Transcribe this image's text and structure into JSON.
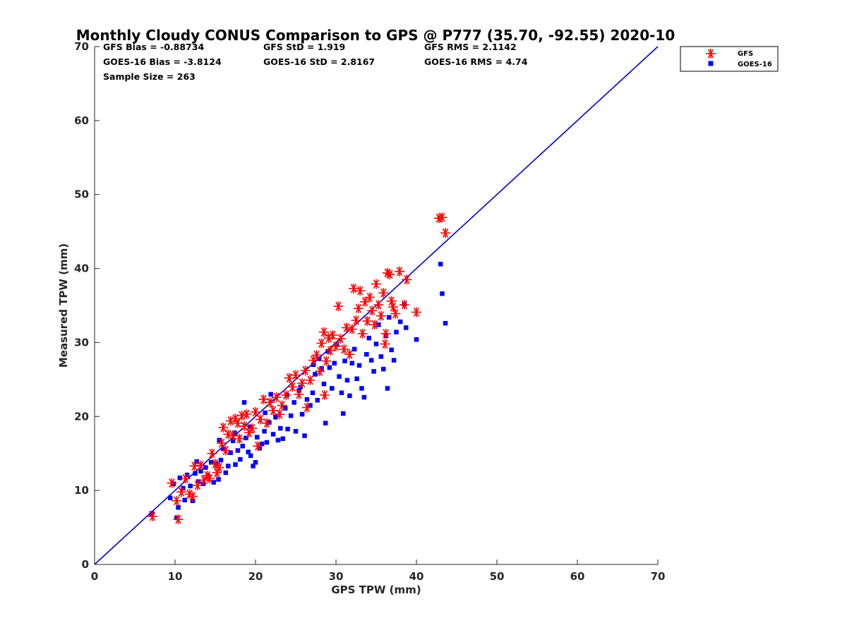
{
  "stats": {
    "gfs_bias": "GFS Bias = -0.88734",
    "gfs_std": "GFS StD = 1.919",
    "gfs_rms": "GFS RMS = 2.1142",
    "goes_bias": "GOES-16 Bias = -3.8124",
    "goes_std": "GOES-16 StD = 2.8167",
    "goes_rms": "GOES-16 RMS = 4.74",
    "sample_size": "Sample Size = 263"
  },
  "chart_data": {
    "type": "scatter",
    "title": "Monthly Cloudy CONUS Comparison to GPS @ P777 (35.70, -92.55) 2020-10",
    "xlabel": "GPS TPW (mm)",
    "ylabel": "Measured TPW (mm)",
    "xlim": [
      0,
      70
    ],
    "ylim": [
      0,
      70
    ],
    "xticks": [
      0,
      10,
      20,
      30,
      40,
      50,
      60,
      70
    ],
    "yticks": [
      0,
      10,
      20,
      30,
      40,
      50,
      60,
      70
    ],
    "grid": false,
    "legend_position": "top-right outside",
    "reference_line": {
      "x": [
        0,
        70
      ],
      "y": [
        0,
        70
      ],
      "color": "#0000cc"
    },
    "series": [
      {
        "name": "GFS",
        "marker": "asterisk",
        "color": "#ff0000",
        "points": [
          [
            7.2,
            6.5
          ],
          [
            9.6,
            11
          ],
          [
            10.2,
            8.6
          ],
          [
            10.4,
            6.1
          ],
          [
            10.8,
            9.8
          ],
          [
            11.3,
            11.6
          ],
          [
            11.8,
            9.5
          ],
          [
            12.2,
            9.2
          ],
          [
            12.4,
            13.3
          ],
          [
            12.8,
            10.7
          ],
          [
            13.2,
            13.4
          ],
          [
            13.6,
            11.4
          ],
          [
            14.0,
            12.0
          ],
          [
            14.3,
            11.6
          ],
          [
            14.6,
            15.0
          ],
          [
            15.0,
            13.6
          ],
          [
            15.2,
            12.4
          ],
          [
            15.5,
            13.1
          ],
          [
            15.8,
            16.4
          ],
          [
            16.0,
            18.5
          ],
          [
            16.3,
            15.4
          ],
          [
            16.6,
            17.6
          ],
          [
            16.9,
            19.4
          ],
          [
            17.2,
            17.4
          ],
          [
            17.5,
            19.7
          ],
          [
            17.8,
            19.1
          ],
          [
            18.0,
            17.0
          ],
          [
            18.3,
            20.1
          ],
          [
            18.6,
            18.7
          ],
          [
            18.9,
            20.3
          ],
          [
            19.2,
            17.8
          ],
          [
            19.6,
            18.4
          ],
          [
            20.0,
            20.6
          ],
          [
            20.3,
            16.0
          ],
          [
            20.6,
            19.6
          ],
          [
            21.0,
            22.3
          ],
          [
            21.4,
            19.1
          ],
          [
            21.8,
            21.9
          ],
          [
            22.2,
            20.8
          ],
          [
            22.6,
            22.6
          ],
          [
            23.0,
            20.3
          ],
          [
            23.3,
            21.5
          ],
          [
            23.8,
            22.9
          ],
          [
            24.2,
            25.2
          ],
          [
            24.6,
            24.0
          ],
          [
            25.0,
            25.6
          ],
          [
            25.4,
            23.0
          ],
          [
            25.8,
            24.5
          ],
          [
            26.2,
            26.2
          ],
          [
            26.4,
            21.2
          ],
          [
            26.8,
            24.9
          ],
          [
            27.2,
            27.6
          ],
          [
            27.6,
            28.3
          ],
          [
            28.0,
            26.1
          ],
          [
            28.2,
            29.9
          ],
          [
            28.5,
            31.4
          ],
          [
            28.6,
            22.9
          ],
          [
            28.8,
            27.5
          ],
          [
            29.1,
            30.6
          ],
          [
            29.3,
            28.9
          ],
          [
            29.6,
            31.0
          ],
          [
            30.0,
            29.5
          ],
          [
            30.3,
            34.9
          ],
          [
            30.6,
            30.5
          ],
          [
            31.0,
            29.1
          ],
          [
            31.3,
            32.0
          ],
          [
            31.7,
            28.4
          ],
          [
            32.0,
            31.8
          ],
          [
            32.2,
            37.3
          ],
          [
            32.5,
            33.0
          ],
          [
            32.8,
            34.6
          ],
          [
            33.0,
            37.0
          ],
          [
            33.3,
            31.2
          ],
          [
            33.6,
            35.5
          ],
          [
            33.9,
            32.9
          ],
          [
            34.2,
            36.1
          ],
          [
            34.5,
            34.3
          ],
          [
            34.8,
            32.4
          ],
          [
            35.0,
            37.9
          ],
          [
            35.3,
            35.1
          ],
          [
            35.6,
            33.6
          ],
          [
            35.9,
            36.7
          ],
          [
            36.2,
            31.2
          ],
          [
            36.4,
            39.4
          ],
          [
            36.7,
            39.2
          ],
          [
            36.9,
            35.6
          ],
          [
            37.1,
            34.8
          ],
          [
            37.4,
            33.9
          ],
          [
            37.9,
            39.6
          ],
          [
            38.5,
            35.1
          ],
          [
            38.8,
            38.5
          ],
          [
            40.0,
            34.1
          ],
          [
            42.8,
            46.8
          ],
          [
            43.2,
            46.9
          ],
          [
            43.6,
            44.8
          ],
          [
            36.1,
            29.8
          ]
        ]
      },
      {
        "name": "GOES-16",
        "marker": "square",
        "color": "#0000ff",
        "points": [
          [
            7.1,
            6.9
          ],
          [
            9.4,
            9.0
          ],
          [
            9.8,
            10.9
          ],
          [
            10.2,
            6.3
          ],
          [
            10.4,
            7.7
          ],
          [
            10.6,
            11.7
          ],
          [
            11.0,
            10.3
          ],
          [
            11.2,
            8.7
          ],
          [
            11.5,
            12.1
          ],
          [
            11.9,
            10.6
          ],
          [
            12.2,
            8.6
          ],
          [
            12.5,
            12.3
          ],
          [
            12.9,
            11.2
          ],
          [
            13.2,
            12.6
          ],
          [
            13.5,
            10.9
          ],
          [
            13.8,
            13.1
          ],
          [
            14.1,
            12.0
          ],
          [
            14.5,
            13.8
          ],
          [
            14.8,
            11.1
          ],
          [
            15.1,
            13.6
          ],
          [
            15.4,
            11.5
          ],
          [
            15.7,
            14.1
          ],
          [
            16.0,
            15.6
          ],
          [
            16.3,
            12.4
          ],
          [
            16.6,
            13.3
          ],
          [
            16.9,
            15.1
          ],
          [
            17.2,
            16.7
          ],
          [
            17.5,
            13.5
          ],
          [
            17.8,
            15.4
          ],
          [
            18.1,
            14.2
          ],
          [
            18.4,
            16.0
          ],
          [
            18.6,
            21.9
          ],
          [
            18.8,
            17.1
          ],
          [
            19.1,
            15.2
          ],
          [
            19.4,
            14.7
          ],
          [
            19.7,
            13.3
          ],
          [
            20.0,
            13.8
          ],
          [
            20.2,
            17.2
          ],
          [
            20.5,
            15.7
          ],
          [
            20.8,
            16.3
          ],
          [
            21.1,
            18.0
          ],
          [
            21.4,
            16.5
          ],
          [
            21.7,
            19.2
          ],
          [
            21.9,
            23.0
          ],
          [
            22.2,
            17.6
          ],
          [
            22.5,
            19.9
          ],
          [
            22.8,
            16.8
          ],
          [
            23.1,
            18.4
          ],
          [
            23.4,
            17.0
          ],
          [
            23.7,
            21.1
          ],
          [
            24.0,
            18.3
          ],
          [
            24.4,
            20.1
          ],
          [
            24.8,
            21.9
          ],
          [
            25.0,
            18.0
          ],
          [
            25.4,
            23.5
          ],
          [
            25.8,
            20.3
          ],
          [
            26.1,
            17.4
          ],
          [
            26.4,
            22.3
          ],
          [
            26.8,
            21.5
          ],
          [
            27.1,
            23.2
          ],
          [
            27.4,
            25.7
          ],
          [
            27.7,
            22.2
          ],
          [
            27.9,
            27.8
          ],
          [
            28.2,
            26.5
          ],
          [
            28.5,
            24.4
          ],
          [
            28.7,
            19.1
          ],
          [
            29.0,
            28.8
          ],
          [
            29.2,
            26.6
          ],
          [
            29.5,
            23.8
          ],
          [
            29.8,
            27.2
          ],
          [
            30.1,
            29.7
          ],
          [
            30.4,
            25.4
          ],
          [
            30.7,
            23.2
          ],
          [
            30.9,
            20.4
          ],
          [
            31.1,
            27.5
          ],
          [
            31.4,
            24.9
          ],
          [
            31.7,
            22.8
          ],
          [
            32.0,
            27.2
          ],
          [
            32.3,
            29.1
          ],
          [
            32.6,
            25.1
          ],
          [
            32.9,
            26.9
          ],
          [
            33.2,
            23.8
          ],
          [
            33.5,
            22.6
          ],
          [
            33.8,
            28.4
          ],
          [
            34.1,
            30.6
          ],
          [
            34.4,
            27.6
          ],
          [
            34.7,
            26.1
          ],
          [
            35.0,
            29.8
          ],
          [
            35.3,
            32.4
          ],
          [
            35.6,
            28.1
          ],
          [
            35.9,
            26.4
          ],
          [
            36.2,
            30.9
          ],
          [
            36.4,
            23.8
          ],
          [
            36.6,
            33.4
          ],
          [
            36.9,
            29.0
          ],
          [
            37.2,
            27.6
          ],
          [
            37.5,
            31.4
          ],
          [
            38.0,
            32.8
          ],
          [
            38.5,
            35.2
          ],
          [
            38.7,
            32.0
          ],
          [
            40.0,
            30.4
          ],
          [
            43.0,
            40.6
          ],
          [
            43.2,
            36.6
          ],
          [
            43.6,
            32.6
          ],
          [
            27.2,
            27.0
          ],
          [
            25.6,
            24.0
          ],
          [
            23.9,
            22.9
          ],
          [
            21.2,
            20.5
          ],
          [
            19.3,
            18.6
          ],
          [
            17.4,
            17.8
          ],
          [
            15.5,
            16.8
          ],
          [
            12.7,
            13.9
          ]
        ]
      }
    ]
  }
}
